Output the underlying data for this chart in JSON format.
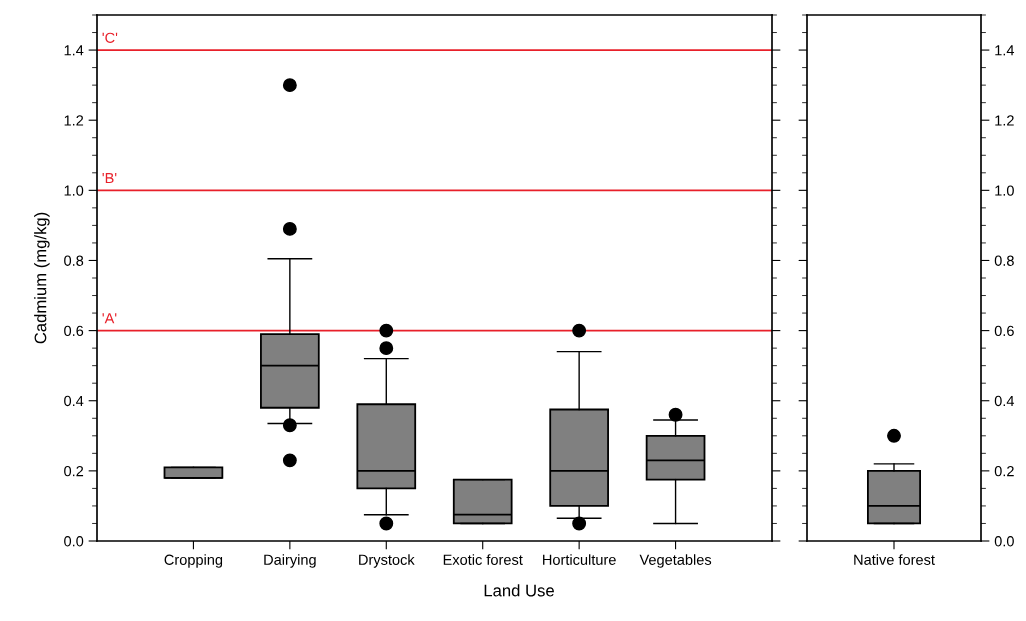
{
  "chart_data": [
    {
      "type": "box",
      "ylabel": "Cadmium (mg/kg)",
      "xlabel": "Land Use",
      "categories": [
        "Cropping",
        "Dairying",
        "Drystock",
        "Exotic forest",
        "Horticulture",
        "Vegetables"
      ],
      "ylim": [
        0,
        1.5
      ],
      "yticks": [
        {
          "value": 0,
          "label": "0.0"
        },
        0.2,
        0.4,
        0.6,
        0.8,
        {
          "value": 1,
          "label": "1.0"
        },
        1.2,
        1.4
      ],
      "tick_labels": "xy",
      "boxes": [
        {
          "low": 0.18,
          "q1": 0.18,
          "median": 0.18,
          "q3": 0.21,
          "high": 0.21
        },
        {
          "low": 0.335,
          "q1": 0.38,
          "median": 0.5,
          "q3": 0.59,
          "high": 0.805,
          "outliers": [
            1.3,
            0.89,
            0.33,
            0.23
          ]
        },
        {
          "low": 0.075,
          "q1": 0.15,
          "median": 0.2,
          "q3": 0.39,
          "high": 0.52,
          "outliers": [
            0.6,
            0.55,
            0.05
          ]
        },
        {
          "low": 0.05,
          "q1": 0.05,
          "median": 0.075,
          "q3": 0.175,
          "high": 0.175
        },
        {
          "low": 0.065,
          "q1": 0.1,
          "median": 0.2,
          "q3": 0.375,
          "high": 0.54,
          "outliers": [
            0.6,
            0.05
          ]
        },
        {
          "low": 0.05,
          "q1": 0.175,
          "median": 0.23,
          "q3": 0.3,
          "high": 0.345,
          "outliers": [
            0.36
          ]
        }
      ],
      "color": "#808080",
      "ref_lines": [
        {
          "axis": "y",
          "value": 0.6,
          "label": "'A'",
          "color": "#e8202a"
        },
        {
          "axis": "y",
          "value": 1.0,
          "label": "'B'",
          "color": "#e8202a"
        },
        {
          "axis": "y",
          "value": 1.4,
          "label": "'C'",
          "color": "#e8202a"
        }
      ]
    },
    {
      "type": "box",
      "categories": [
        "Native forest"
      ],
      "y2lim": [
        0,
        1.5
      ],
      "y2ticks": [
        {
          "value": 0,
          "label": "0.0"
        },
        0.2,
        0.4,
        0.6,
        0.8,
        {
          "value": 1,
          "label": "1.0"
        },
        1.2,
        1.4
      ],
      "color": "#808080",
      "series": [
        {
          "axis": "y2",
          "boxes": [
            {
              "low": 0.05,
              "q1": 0.05,
              "median": 0.1,
              "q3": 0.2,
              "high": 0.22,
              "outliers": [
                0.3
              ]
            }
          ]
        }
      ]
    }
  ]
}
